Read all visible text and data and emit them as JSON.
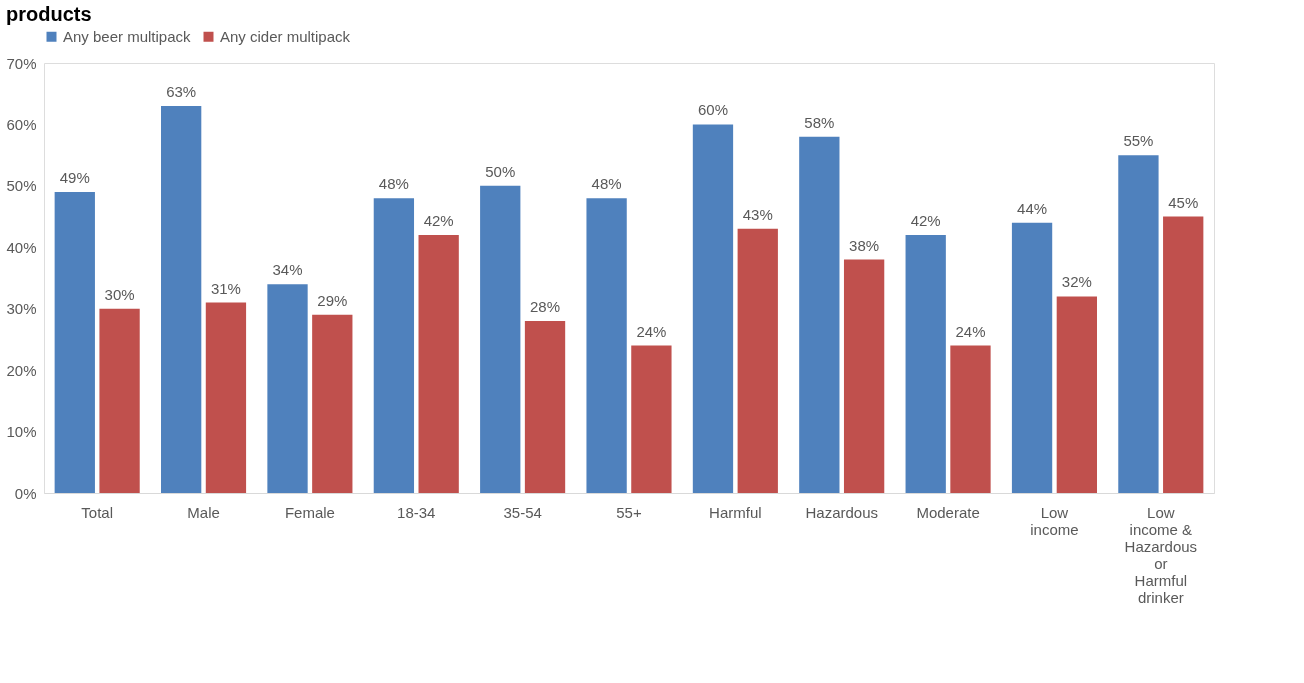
{
  "chart_data": {
    "type": "bar",
    "title": "products",
    "categories": [
      "Total",
      "Male",
      "Female",
      "18-34",
      "35-54",
      "55+",
      "Harmful",
      "Hazardous",
      "Moderate",
      "Low income",
      "Low income & Hazardous or Harmful drinker"
    ],
    "series": [
      {
        "name": "Any beer multipack",
        "color": "#4f81bd",
        "values": [
          49,
          63,
          34,
          48,
          50,
          48,
          60,
          58,
          42,
          44,
          55
        ],
        "value_labels": [
          "49%",
          "63%",
          "34%",
          "48%",
          "50%",
          "48%",
          "60%",
          "58%",
          "42%",
          "44%",
          "55%"
        ]
      },
      {
        "name": "Any cider multipack",
        "color": "#c0504d",
        "values": [
          30,
          31,
          29,
          42,
          28,
          24,
          43,
          38,
          24,
          32,
          45
        ],
        "value_labels": [
          "30%",
          "31%",
          "29%",
          "42%",
          "28%",
          "24%",
          "43%",
          "38%",
          "24%",
          "32%",
          "45%"
        ]
      }
    ],
    "ylim": [
      0,
      70
    ],
    "yticks": [
      {
        "value": 0,
        "label": "0%"
      },
      {
        "value": 10,
        "label": "10%"
      },
      {
        "value": 20,
        "label": "20%"
      },
      {
        "value": 30,
        "label": "30%"
      },
      {
        "value": 40,
        "label": "40%"
      },
      {
        "value": 50,
        "label": "50%"
      },
      {
        "value": 60,
        "label": "60%"
      },
      {
        "value": 70,
        "label": "70%"
      }
    ],
    "grid": false,
    "legend": "top"
  }
}
